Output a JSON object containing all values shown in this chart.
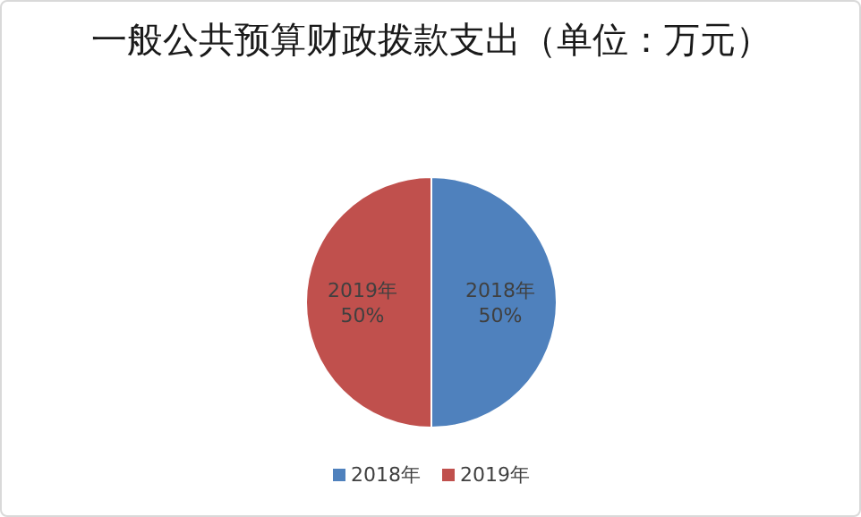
{
  "chart_data": {
    "type": "pie",
    "title": "一般公共预算财政拨款支出（单位：万元）",
    "categories": [
      "2018年",
      "2019年"
    ],
    "values": [
      50,
      50
    ],
    "value_labels": [
      "50%",
      "50%"
    ],
    "colors": [
      "#4f81bd",
      "#c0504d"
    ],
    "legend": "bottom"
  }
}
